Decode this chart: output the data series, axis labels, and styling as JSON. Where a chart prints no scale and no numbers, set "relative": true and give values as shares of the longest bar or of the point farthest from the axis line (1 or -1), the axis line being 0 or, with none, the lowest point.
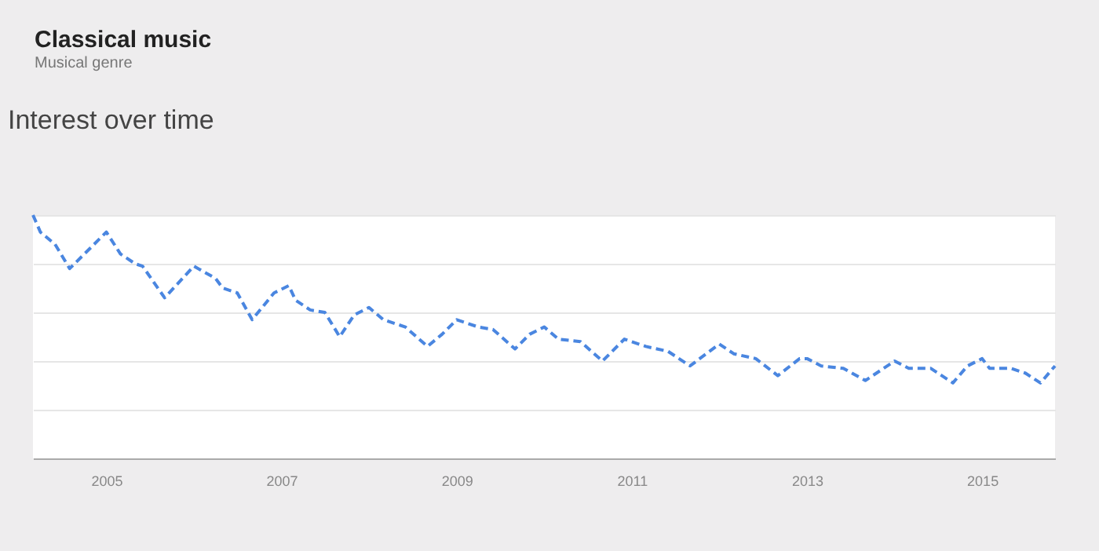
{
  "chart_data": {
    "type": "line",
    "title": "Classical music",
    "subtitle": "Musical genre",
    "annotations": [
      "Interest over time"
    ],
    "x": [
      "2004-03",
      "2004-04",
      "2004-06",
      "2004-08",
      "2005-01",
      "2005-03",
      "2005-05",
      "2005-06",
      "2005-09",
      "2006-01",
      "2006-04",
      "2006-05",
      "2006-07",
      "2006-09",
      "2006-12",
      "2007-02",
      "2007-03",
      "2007-05",
      "2007-07",
      "2007-09",
      "2007-11",
      "2008-01",
      "2008-03",
      "2008-06",
      "2008-09",
      "2008-11",
      "2009-01",
      "2009-04",
      "2009-06",
      "2009-09",
      "2009-11",
      "2010-01",
      "2010-03",
      "2010-06",
      "2010-09",
      "2010-12",
      "2011-03",
      "2011-06",
      "2011-09",
      "2012-01",
      "2012-03",
      "2012-06",
      "2012-09",
      "2012-12",
      "2013-01",
      "2013-03",
      "2013-06",
      "2013-09",
      "2014-01",
      "2014-03",
      "2014-06",
      "2014-09",
      "2014-11",
      "2015-01",
      "2015-02",
      "2015-05",
      "2015-07",
      "2015-09",
      "2015-11"
    ],
    "values": [
      1.0,
      0.93,
      0.88,
      0.78,
      0.93,
      0.84,
      0.8,
      0.79,
      0.66,
      0.79,
      0.74,
      0.7,
      0.68,
      0.57,
      0.68,
      0.71,
      0.65,
      0.61,
      0.6,
      0.5,
      0.59,
      0.62,
      0.57,
      0.54,
      0.46,
      0.51,
      0.57,
      0.54,
      0.53,
      0.45,
      0.51,
      0.54,
      0.49,
      0.48,
      0.4,
      0.49,
      0.46,
      0.44,
      0.38,
      0.47,
      0.43,
      0.41,
      0.34,
      0.41,
      0.41,
      0.38,
      0.37,
      0.32,
      0.4,
      0.37,
      0.37,
      0.31,
      0.38,
      0.41,
      0.37,
      0.37,
      0.35,
      0.31,
      0.38
    ],
    "color": "#4a86e0",
    "relative": true,
    "line_style": "dashed",
    "grid": "y",
    "xlim": [
      "2004-03",
      "2015-11"
    ],
    "xticks": [
      "2005",
      "2007",
      "2009",
      "2011",
      "2013",
      "2015"
    ]
  }
}
